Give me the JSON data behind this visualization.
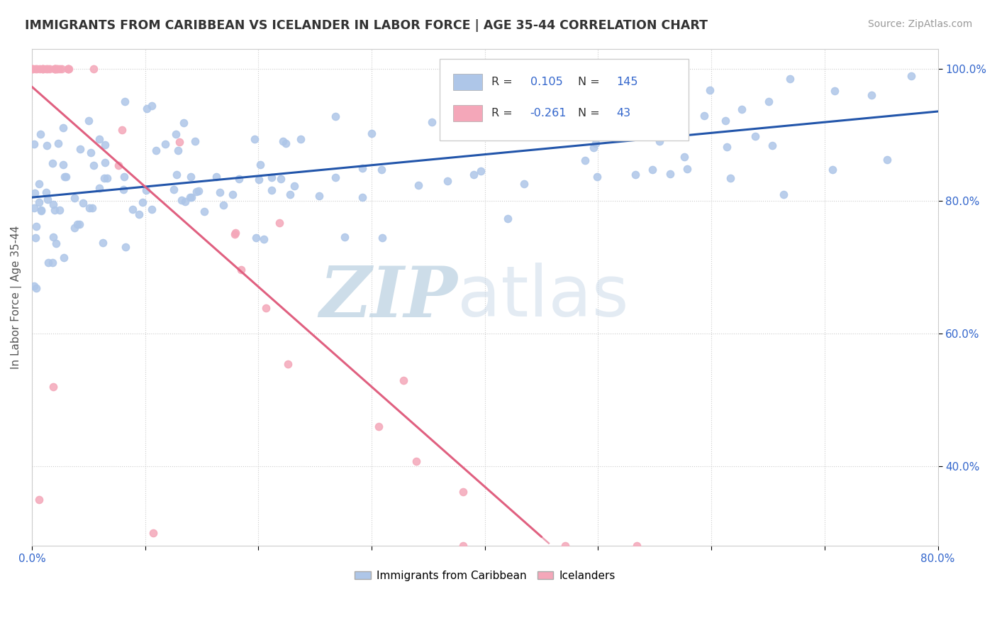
{
  "title": "IMMIGRANTS FROM CARIBBEAN VS ICELANDER IN LABOR FORCE | AGE 35-44 CORRELATION CHART",
  "source": "Source: ZipAtlas.com",
  "ylabel": "In Labor Force | Age 35-44",
  "xlim": [
    0.0,
    0.8
  ],
  "ylim": [
    0.28,
    1.03
  ],
  "xticks": [
    0.0,
    0.1,
    0.2,
    0.3,
    0.4,
    0.5,
    0.6,
    0.7,
    0.8
  ],
  "xticklabels": [
    "0.0%",
    "",
    "",
    "",
    "",
    "",
    "",
    "",
    "80.0%"
  ],
  "yticks": [
    0.4,
    0.6,
    0.8,
    1.0
  ],
  "yticklabels": [
    "40.0%",
    "60.0%",
    "80.0%",
    "100.0%"
  ],
  "caribbean_R": 0.105,
  "caribbean_N": 145,
  "icelander_R": -0.261,
  "icelander_N": 43,
  "caribbean_color": "#aec6e8",
  "icelander_color": "#f4a7b9",
  "trend_caribbean_color": "#2255aa",
  "trend_icelander_color": "#e06080",
  "tick_color": "#3366cc",
  "watermark_zip": "ZIP",
  "watermark_atlas": "atlas",
  "watermark_color_zip": "#b8cfe0",
  "watermark_color_atlas": "#c8d8e8",
  "legend_R_color": "#3366cc",
  "legend_N_color": "#3366cc"
}
